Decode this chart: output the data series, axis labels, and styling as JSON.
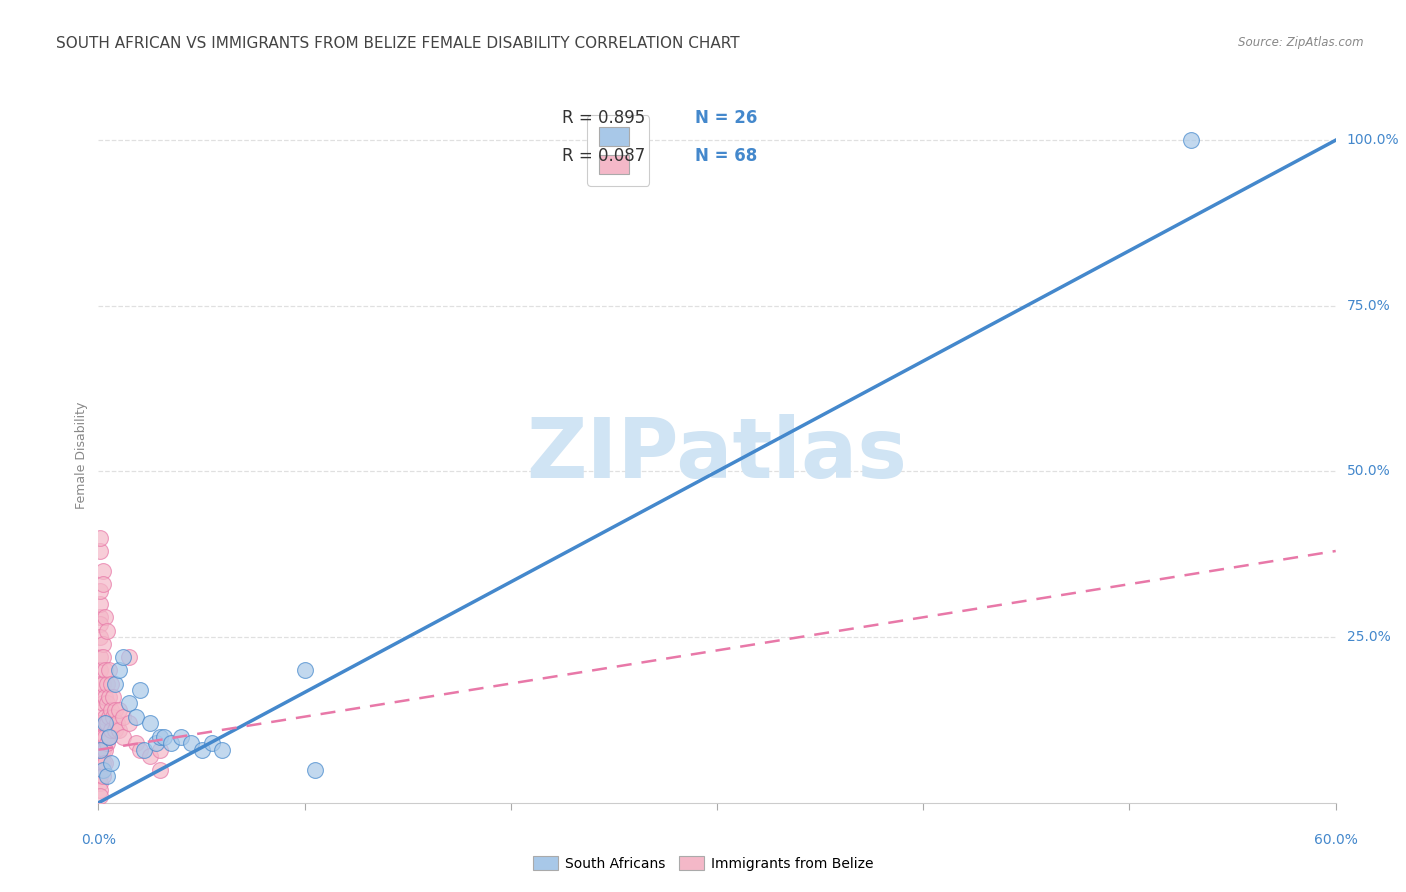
{
  "title": "SOUTH AFRICAN VS IMMIGRANTS FROM BELIZE FEMALE DISABILITY CORRELATION CHART",
  "source": "Source: ZipAtlas.com",
  "ylabel": "Female Disability",
  "watermark": "ZIPatlas",
  "legend_blue_r": "R = 0.895",
  "legend_blue_n": "N = 26",
  "legend_pink_r": "R = 0.087",
  "legend_pink_n": "N = 68",
  "blue_color": "#a8c8e8",
  "pink_color": "#f4b8c8",
  "blue_line_color": "#4488cc",
  "pink_line_color": "#e878a8",
  "blue_scatter": [
    [
      0.001,
      0.08
    ],
    [
      0.003,
      0.12
    ],
    [
      0.005,
      0.1
    ],
    [
      0.008,
      0.18
    ],
    [
      0.01,
      0.2
    ],
    [
      0.012,
      0.22
    ],
    [
      0.015,
      0.15
    ],
    [
      0.018,
      0.13
    ],
    [
      0.02,
      0.17
    ],
    [
      0.022,
      0.08
    ],
    [
      0.025,
      0.12
    ],
    [
      0.028,
      0.09
    ],
    [
      0.03,
      0.1
    ],
    [
      0.032,
      0.1
    ],
    [
      0.035,
      0.09
    ],
    [
      0.04,
      0.1
    ],
    [
      0.045,
      0.09
    ],
    [
      0.05,
      0.08
    ],
    [
      0.055,
      0.09
    ],
    [
      0.06,
      0.08
    ],
    [
      0.002,
      0.05
    ],
    [
      0.004,
      0.04
    ],
    [
      0.006,
      0.06
    ],
    [
      0.1,
      0.2
    ],
    [
      0.105,
      0.05
    ],
    [
      0.53,
      1.0
    ]
  ],
  "pink_scatter": [
    [
      0.001,
      0.28
    ],
    [
      0.001,
      0.3
    ],
    [
      0.001,
      0.27
    ],
    [
      0.001,
      0.32
    ],
    [
      0.001,
      0.25
    ],
    [
      0.001,
      0.22
    ],
    [
      0.001,
      0.2
    ],
    [
      0.001,
      0.18
    ],
    [
      0.001,
      0.16
    ],
    [
      0.001,
      0.14
    ],
    [
      0.001,
      0.12
    ],
    [
      0.001,
      0.1
    ],
    [
      0.001,
      0.08
    ],
    [
      0.001,
      0.06
    ],
    [
      0.001,
      0.05
    ],
    [
      0.001,
      0.04
    ],
    [
      0.001,
      0.03
    ],
    [
      0.001,
      0.02
    ],
    [
      0.001,
      0.01
    ],
    [
      0.001,
      0.07
    ],
    [
      0.002,
      0.24
    ],
    [
      0.002,
      0.22
    ],
    [
      0.002,
      0.18
    ],
    [
      0.002,
      0.15
    ],
    [
      0.002,
      0.12
    ],
    [
      0.002,
      0.1
    ],
    [
      0.002,
      0.08
    ],
    [
      0.002,
      0.06
    ],
    [
      0.002,
      0.04
    ],
    [
      0.003,
      0.2
    ],
    [
      0.003,
      0.16
    ],
    [
      0.003,
      0.13
    ],
    [
      0.003,
      0.1
    ],
    [
      0.003,
      0.08
    ],
    [
      0.003,
      0.06
    ],
    [
      0.004,
      0.18
    ],
    [
      0.004,
      0.15
    ],
    [
      0.004,
      0.12
    ],
    [
      0.004,
      0.09
    ],
    [
      0.005,
      0.2
    ],
    [
      0.005,
      0.16
    ],
    [
      0.005,
      0.13
    ],
    [
      0.005,
      0.1
    ],
    [
      0.006,
      0.18
    ],
    [
      0.006,
      0.14
    ],
    [
      0.006,
      0.11
    ],
    [
      0.007,
      0.16
    ],
    [
      0.007,
      0.13
    ],
    [
      0.008,
      0.14
    ],
    [
      0.008,
      0.11
    ],
    [
      0.009,
      0.12
    ],
    [
      0.01,
      0.14
    ],
    [
      0.01,
      0.11
    ],
    [
      0.012,
      0.13
    ],
    [
      0.012,
      0.1
    ],
    [
      0.015,
      0.22
    ],
    [
      0.015,
      0.12
    ],
    [
      0.018,
      0.09
    ],
    [
      0.02,
      0.08
    ],
    [
      0.025,
      0.07
    ],
    [
      0.03,
      0.08
    ],
    [
      0.03,
      0.05
    ],
    [
      0.002,
      0.35
    ],
    [
      0.002,
      0.33
    ],
    [
      0.003,
      0.28
    ],
    [
      0.004,
      0.26
    ],
    [
      0.001,
      0.38
    ],
    [
      0.001,
      0.4
    ]
  ],
  "xlim": [
    0.0,
    0.6
  ],
  "ylim": [
    0.0,
    1.05
  ],
  "blue_line_x": [
    0.0,
    0.6
  ],
  "blue_line_y": [
    0.0,
    1.0
  ],
  "pink_line_x": [
    0.0,
    0.6
  ],
  "pink_line_y": [
    0.08,
    0.38
  ],
  "background_color": "#ffffff",
  "grid_color": "#dddddd",
  "title_fontsize": 11,
  "label_fontsize": 9,
  "tick_fontsize": 10,
  "watermark_fontsize": 60,
  "watermark_color": "#d0e4f4",
  "axis_color": "#4488cc",
  "text_black": "#333333",
  "legend_value_color": "#4488cc"
}
